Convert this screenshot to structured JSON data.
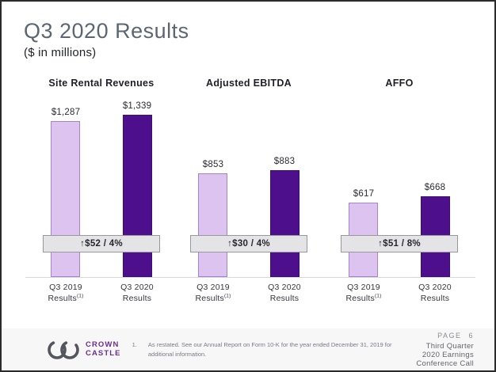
{
  "slide": {
    "title": "Q3 2020 Results",
    "subtitle": "($ in millions)"
  },
  "chart_data": {
    "type": "bar",
    "title": "Q3 2020 Results",
    "unit_label": "$ in millions",
    "ylim": [
      0,
      1400
    ],
    "grid": false,
    "legend_position": "none",
    "charts": [
      {
        "title": "Site Rental Revenues",
        "categories": [
          "Q3 2019 Results (1)",
          "Q3 2020 Results"
        ],
        "x_labels": [
          {
            "line1": "Q3 2019",
            "line2": "Results",
            "sup": "(1)"
          },
          {
            "line1": "Q3 2020",
            "line2": "Results",
            "sup": ""
          }
        ],
        "values": [
          1287,
          1339
        ],
        "value_labels": [
          "$1,287",
          "$1,339"
        ],
        "delta_label": "↑$52 / 4%"
      },
      {
        "title": "Adjusted EBITDA",
        "categories": [
          "Q3 2019 Results (1)",
          "Q3 2020 Results"
        ],
        "x_labels": [
          {
            "line1": "Q3 2019",
            "line2": "Results",
            "sup": "(1)"
          },
          {
            "line1": "Q3 2020",
            "line2": "Results",
            "sup": ""
          }
        ],
        "values": [
          853,
          883
        ],
        "value_labels": [
          "$853",
          "$883"
        ],
        "delta_label": "↑$30 / 4%"
      },
      {
        "title": "AFFO",
        "categories": [
          "Q3 2019 Results (1)",
          "Q3 2020 Results"
        ],
        "x_labels": [
          {
            "line1": "Q3 2019",
            "line2": "Results",
            "sup": "(1)"
          },
          {
            "line1": "Q3 2020",
            "line2": "Results",
            "sup": ""
          }
        ],
        "values": [
          617,
          668
        ],
        "value_labels": [
          "$617",
          "$668"
        ],
        "delta_label": "↑$51 / 8%"
      }
    ],
    "colors": {
      "bar_2019_fill": "#DCC3F0",
      "bar_2019_border": "#A583CC",
      "bar_2020_fill": "#4D0F8C",
      "bar_2020_border": "#400A78",
      "banner_fill": "#E4E4E6",
      "banner_border": "#98989C",
      "title_slate": "#5C6670",
      "logo_purple": "#6B2D90",
      "logo_gray": "#54565C"
    }
  },
  "footer": {
    "logo_line1": "CROWN",
    "logo_line2": "CASTLE",
    "footnote_number": "1.",
    "footnote_text": "As restated. See our Annual Report on Form 10-K for the year ended December 31, 2019 for additional information.",
    "page_label": "PAGE",
    "page_number": "6",
    "deck_title": "Third Quarter 2020 Earnings Conference Call"
  }
}
